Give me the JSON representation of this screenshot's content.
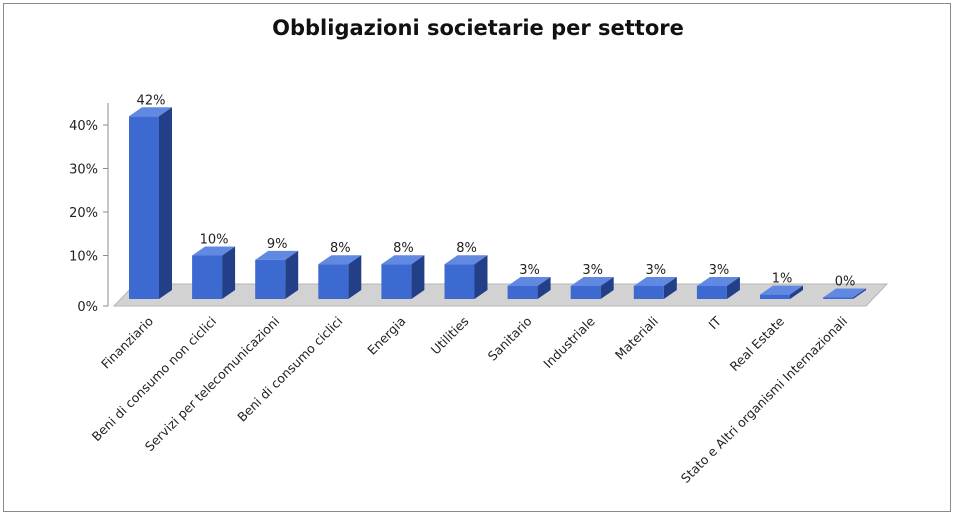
{
  "chart_data": {
    "type": "bar",
    "title": "Obbligazioni societarie per settore",
    "xlabel": "",
    "ylabel": "",
    "categories": [
      "Finanziario",
      "Beni di consumo non ciclici",
      "Servizi per telecomunicazioni",
      "Beni di consumo ciclici",
      "Energia",
      "Utilities",
      "Sanitario",
      "Industriale",
      "Materiali",
      "IT",
      "Real Estate",
      "Stato e Altri organismi Internazionali"
    ],
    "values": [
      42,
      10,
      9,
      8,
      8,
      8,
      3,
      3,
      3,
      3,
      1,
      0
    ],
    "data_labels": [
      "42%",
      "10%",
      "9%",
      "8%",
      "8%",
      "8%",
      "3%",
      "3%",
      "3%",
      "3%",
      "1%",
      "0%"
    ],
    "ylim": [
      0,
      40
    ],
    "yticks": [
      "0%",
      "10%",
      "20%",
      "30%",
      "40%"
    ],
    "grid": false,
    "legend": "none",
    "colors": {
      "bar_front": "#3d6ad1",
      "bar_side": "#223f87",
      "bar_top": "#6189e2",
      "floor": "#d2d2d2",
      "axis": "#8c8c8c"
    }
  }
}
